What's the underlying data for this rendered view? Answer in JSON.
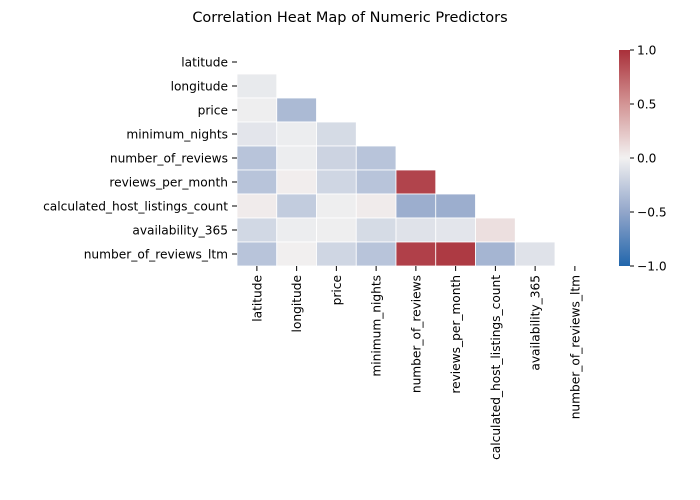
{
  "chart_data": {
    "type": "heatmap",
    "title": "Correlation Heat Map of Numeric Predictors",
    "xlabel": "",
    "ylabel": "",
    "variables": [
      "latitude",
      "longitude",
      "price",
      "minimum_nights",
      "number_of_reviews",
      "reviews_per_month",
      "calculated_host_listings_count",
      "availability_365",
      "number_of_reviews_ltm"
    ],
    "mask": "upper-triangle-including-diagonal",
    "colormap": "vlag (blue-white-red)",
    "vmin": -1.0,
    "vmax": 1.0,
    "colorbar_ticks": [
      "1.0",
      "0.5",
      "0.0",
      "−0.5",
      "−1.0"
    ],
    "colorbar_tick_values": [
      1.0,
      0.5,
      0.0,
      -0.5,
      -1.0
    ],
    "grid": "white cell borders",
    "matrix": [
      [
        null,
        null,
        null,
        null,
        null,
        null,
        null,
        null,
        null
      ],
      [
        -0.05,
        null,
        null,
        null,
        null,
        null,
        null,
        null,
        null
      ],
      [
        -0.02,
        -0.37,
        null,
        null,
        null,
        null,
        null,
        null,
        null
      ],
      [
        -0.08,
        -0.03,
        -0.15,
        null,
        null,
        null,
        null,
        null,
        null
      ],
      [
        -0.3,
        -0.03,
        -0.2,
        -0.3,
        null,
        null,
        null,
        null,
        null
      ],
      [
        -0.3,
        0.02,
        -0.18,
        -0.3,
        0.9,
        null,
        null,
        null,
        null
      ],
      [
        0.03,
        -0.25,
        -0.02,
        0.03,
        -0.45,
        -0.45,
        null,
        null,
        null
      ],
      [
        -0.17,
        -0.03,
        -0.02,
        -0.15,
        -0.1,
        -0.08,
        0.1,
        null,
        null
      ],
      [
        -0.3,
        0.01,
        -0.18,
        -0.3,
        0.92,
        0.95,
        -0.4,
        -0.1,
        null
      ]
    ]
  }
}
